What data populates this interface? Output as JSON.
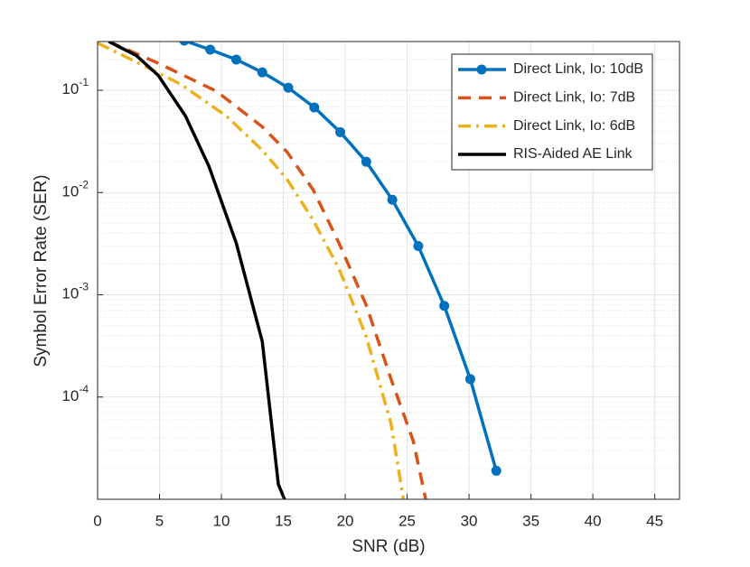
{
  "chart_data": {
    "type": "line",
    "xlabel": "SNR (dB)",
    "ylabel": "Symbol Error Rate (SER)",
    "xlim": [
      0,
      47
    ],
    "xticks": [
      0,
      5,
      10,
      15,
      20,
      25,
      30,
      35,
      40,
      45
    ],
    "ylim": [
      1e-05,
      0.3
    ],
    "yscale": "log",
    "yticks": [
      {
        "value": 0.1,
        "label": "10-1"
      },
      {
        "value": 0.01,
        "label": "10-2"
      },
      {
        "value": 0.001,
        "label": "10-3"
      },
      {
        "value": 0.0001,
        "label": "10-4"
      }
    ],
    "grid": true,
    "minor_grid": true,
    "legend": "upper right",
    "series": [
      {
        "name": "Direct Link, Io: 10dB",
        "color": "#0072bd",
        "linestyle": "solid",
        "marker": "circle",
        "x": [
          7,
          9.1,
          11.2,
          13.3,
          15.4,
          17.5,
          19.6,
          21.7,
          23.8,
          25.9,
          28,
          30.1,
          32.2
        ],
        "values": [
          0.306,
          0.25,
          0.2,
          0.15,
          0.106,
          0.068,
          0.039,
          0.02,
          0.0085,
          0.003,
          0.00078,
          0.00015,
          1.9e-05
        ]
      },
      {
        "name": "Direct Link, Io: 7dB",
        "color": "#d95319",
        "linestyle": "dashed",
        "marker": "none",
        "x": [
          0.9,
          4.9,
          9.6,
          13.3,
          15.3,
          17.4,
          19.5,
          21.7,
          23.7,
          25.5,
          26.5
        ],
        "values": [
          0.3,
          0.184,
          0.098,
          0.044,
          0.025,
          0.0107,
          0.0032,
          0.00079,
          0.00015,
          3.7e-05,
          1e-05
        ]
      },
      {
        "name": "Direct Link, Io: 6dB",
        "color": "#edb120",
        "linestyle": "dashdot",
        "marker": "none",
        "x": [
          0,
          3.1,
          6.7,
          10.4,
          13.3,
          15.3,
          17.4,
          19.5,
          21.7,
          23.7,
          24.7
        ],
        "values": [
          0.29,
          0.19,
          0.115,
          0.056,
          0.026,
          0.0135,
          0.0054,
          0.0018,
          0.00039,
          5.5e-05,
          1e-05
        ]
      },
      {
        "name": "RIS-Aided AE Link",
        "color": "#000000",
        "linestyle": "solid",
        "marker": "none",
        "x": [
          0.9,
          3.1,
          4.9,
          7.1,
          9,
          11.2,
          13.3,
          14.6,
          15.1
        ],
        "values": [
          0.3,
          0.22,
          0.14,
          0.056,
          0.018,
          0.0032,
          0.00035,
          1.4e-05,
          1e-05
        ]
      }
    ]
  }
}
